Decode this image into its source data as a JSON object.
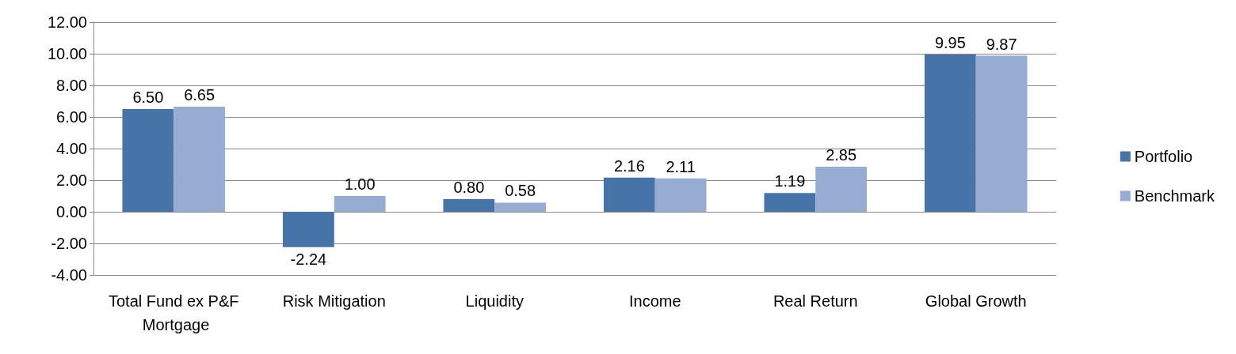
{
  "chart_data": {
    "type": "bar",
    "categories": [
      "Total Fund ex P&F Mortgage",
      "Risk Mitigation",
      "Liquidity",
      "Income",
      "Real Return",
      "Global Growth"
    ],
    "series": [
      {
        "name": "Portfolio",
        "color": "#4674a8",
        "values": [
          6.5,
          -2.24,
          0.8,
          2.16,
          1.19,
          9.95
        ],
        "value_labels": [
          "6.50",
          "-2.24",
          "0.80",
          "2.16",
          "1.19",
          "9.95"
        ]
      },
      {
        "name": "Benchmark",
        "color": "#97acd3",
        "values": [
          6.65,
          1.0,
          0.58,
          2.11,
          2.85,
          9.87
        ],
        "value_labels": [
          "6.65",
          "1.00",
          "0.58",
          "2.11",
          "2.85",
          "9.87"
        ]
      }
    ],
    "ylim": [
      -4,
      12
    ],
    "yticks": [
      {
        "value": -4,
        "label": "-4.00"
      },
      {
        "value": -2,
        "label": "-2.00"
      },
      {
        "value": 0,
        "label": "0.00"
      },
      {
        "value": 2,
        "label": "2.00"
      },
      {
        "value": 4,
        "label": "4.00"
      },
      {
        "value": 6,
        "label": "6.00"
      },
      {
        "value": 8,
        "label": "8.00"
      },
      {
        "value": 10,
        "label": "10.00"
      },
      {
        "value": 12,
        "label": "12.00"
      }
    ],
    "grid": "y",
    "legend": "right"
  }
}
